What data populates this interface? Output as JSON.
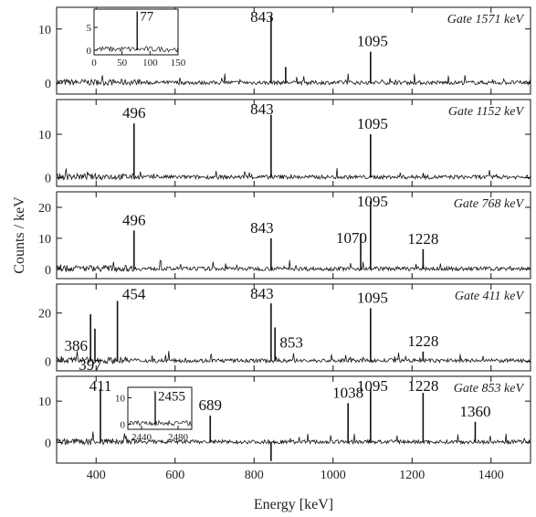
{
  "chart_data": {
    "type": "line",
    "xlabel": "Energy [keV]",
    "ylabel": "Counts / keV",
    "xlim": [
      300,
      1500
    ],
    "x_ticks": [
      400,
      600,
      800,
      1000,
      1200,
      1400
    ],
    "panels": [
      {
        "gate": "Gate 1571 keV",
        "ylim": [
          -2,
          14
        ],
        "y_ticks": [
          0,
          10
        ],
        "peaks": [
          {
            "energy": 843,
            "height": 12.5,
            "label": "843"
          },
          {
            "energy": 1095,
            "height": 5.8,
            "label": "1095"
          },
          {
            "energy": 880,
            "height": 3.0,
            "label": ""
          }
        ],
        "inset": {
          "xlim": [
            0,
            150
          ],
          "x_ticks": [
            0,
            50,
            100,
            150
          ],
          "ylim": [
            -1,
            9
          ],
          "y_ticks": [
            0,
            5
          ],
          "peaks": [
            {
              "energy": 77,
              "height": 8.5,
              "label": "77"
            }
          ]
        }
      },
      {
        "gate": "Gate 1152 keV",
        "ylim": [
          -2,
          18
        ],
        "y_ticks": [
          0,
          10
        ],
        "peaks": [
          {
            "energy": 496,
            "height": 12.5,
            "label": "496"
          },
          {
            "energy": 843,
            "height": 14.5,
            "label": "843"
          },
          {
            "energy": 1095,
            "height": 10.0,
            "label": "1095"
          }
        ]
      },
      {
        "gate": "Gate 768 keV",
        "ylim": [
          -3,
          25
        ],
        "y_ticks": [
          0,
          10,
          20
        ],
        "peaks": [
          {
            "energy": 496,
            "height": 12.5,
            "label": "496"
          },
          {
            "energy": 843,
            "height": 10.0,
            "label": "843"
          },
          {
            "energy": 1070,
            "height": 11.5,
            "label": "1070"
          },
          {
            "energy": 1095,
            "height": 22.0,
            "label": "1095"
          },
          {
            "energy": 1228,
            "height": 6.5,
            "label": "1228"
          }
        ]
      },
      {
        "gate": "Gate 411 keV",
        "ylim": [
          -4,
          32
        ],
        "y_ticks": [
          0,
          20
        ],
        "peaks": [
          {
            "energy": 386,
            "height": 19.5,
            "label": "386"
          },
          {
            "energy": 397,
            "height": 13.5,
            "label": "397"
          },
          {
            "energy": 454,
            "height": 25.0,
            "label": "454"
          },
          {
            "energy": 843,
            "height": 24.0,
            "label": "843"
          },
          {
            "energy": 853,
            "height": 14.0,
            "label": "853"
          },
          {
            "energy": 1095,
            "height": 22.0,
            "label": "1095"
          },
          {
            "energy": 1228,
            "height": 4.0,
            "label": "1228"
          }
        ]
      },
      {
        "gate": "Gate 853 keV",
        "ylim": [
          -5,
          16
        ],
        "y_ticks": [
          0,
          10
        ],
        "peaks": [
          {
            "energy": 411,
            "height": 13.0,
            "label": "411"
          },
          {
            "energy": 689,
            "height": 6.5,
            "label": "689"
          },
          {
            "energy": 1038,
            "height": 9.5,
            "label": "1038"
          },
          {
            "energy": 1095,
            "height": 13.0,
            "label": "1095"
          },
          {
            "energy": 1228,
            "height": 12.0,
            "label": "1228"
          },
          {
            "energy": 1360,
            "height": 5.0,
            "label": "1360"
          },
          {
            "energy": 843,
            "height": -4.5,
            "label": ""
          }
        ],
        "inset": {
          "xlim": [
            2425,
            2495
          ],
          "x_ticks": [
            2440,
            2480
          ],
          "ylim": [
            -2,
            14
          ],
          "y_ticks": [
            0,
            10
          ],
          "peaks": [
            {
              "energy": 2455,
              "height": 12.5,
              "label": "2455"
            }
          ]
        }
      }
    ]
  }
}
